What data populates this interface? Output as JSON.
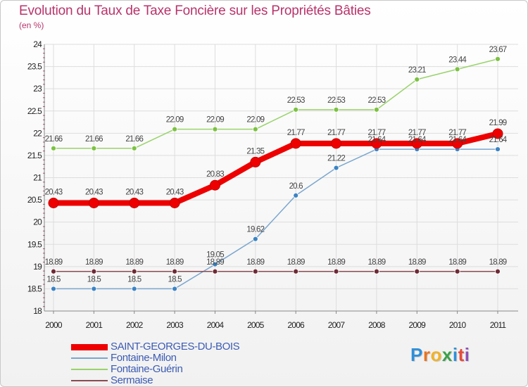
{
  "title": "Evolution du Taux de Taxe Foncière sur les Propriétés Bâties",
  "unit": "(en %)",
  "logo": {
    "letters": [
      "P",
      "r",
      "o",
      "x",
      "i",
      "t",
      "i"
    ],
    "colors": [
      "#2f8fd8",
      "#e8741f",
      "#f0b22a",
      "#3aa14a",
      "#2f8fd8",
      "#e84a3a",
      "#8e4fb5"
    ]
  },
  "chart_data": {
    "type": "line",
    "title": "Evolution du Taux de Taxe Foncière sur les Propriétés Bâties",
    "ylabel": "(en %)",
    "categories": [
      "2000",
      "2001",
      "2002",
      "2003",
      "2004",
      "2005",
      "2006",
      "2007",
      "2008",
      "2009",
      "2010",
      "2011"
    ],
    "ylim": [
      18,
      24
    ],
    "yticks": [
      "18",
      "18.5",
      "19",
      "19.5",
      "20",
      "20.5",
      "21",
      "21.5",
      "22",
      "22.5",
      "23",
      "23.5",
      "24"
    ],
    "series": [
      {
        "name": "SAINT-GEORGES-DU-BOIS",
        "color": "#ee0000",
        "width": 8,
        "radius": 7,
        "values": [
          20.43,
          20.43,
          20.43,
          20.43,
          20.83,
          21.35,
          21.77,
          21.77,
          21.77,
          21.77,
          21.77,
          21.99
        ],
        "labels": [
          "20.43",
          "20.43",
          "20.43",
          "20.43",
          "20.83",
          "21.35",
          "21.77",
          "21.77",
          "21.77",
          "21.77",
          "21.77",
          "21.99"
        ]
      },
      {
        "name": "Fontaine-Milon",
        "color": "#7aa6cf",
        "dot": "#3b84c4",
        "width": 1.5,
        "radius": 3.5,
        "values": [
          18.5,
          18.5,
          18.5,
          18.5,
          19.05,
          19.62,
          20.6,
          21.22,
          21.64,
          21.64,
          21.64,
          21.64
        ],
        "labels": [
          "18.5",
          "18.5",
          "18.5",
          "18.5",
          "19.05",
          "19.62",
          "20.6",
          "21.22",
          "21.64",
          "21.64",
          "21.64",
          "21.64"
        ]
      },
      {
        "name": "Fontaine-Guérin",
        "color": "#99d36a",
        "dot": "#7cc242",
        "width": 1.5,
        "radius": 3.5,
        "values": [
          21.66,
          21.66,
          21.66,
          22.09,
          22.09,
          22.09,
          22.53,
          22.53,
          22.53,
          23.21,
          23.44,
          23.67
        ],
        "labels": [
          "21.66",
          "21.66",
          "21.66",
          "22.09",
          "22.09",
          "22.09",
          "22.53",
          "22.53",
          "22.53",
          "23.21",
          "23.44",
          "23.67"
        ]
      },
      {
        "name": "Sermaise",
        "color": "#8a4a52",
        "dot": "#6e2a34",
        "width": 1.5,
        "radius": 3.5,
        "values": [
          18.89,
          18.89,
          18.89,
          18.89,
          18.89,
          18.89,
          18.89,
          18.89,
          18.89,
          18.89,
          18.89,
          18.89
        ],
        "labels": [
          "18.89",
          "18.89",
          "18.89",
          "18.89",
          "18.89",
          "18.89",
          "18.89",
          "18.89",
          "18.89",
          "18.89",
          "18.89",
          "18.89"
        ]
      }
    ]
  }
}
